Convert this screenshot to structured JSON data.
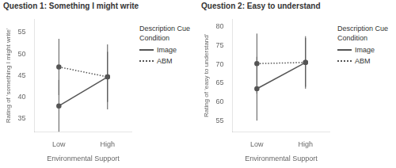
{
  "chart_data": [
    {
      "type": "line",
      "title": "Question 1: Something I might write",
      "x_label": "Environmental Support",
      "y_label": "Rating of 'something I might write'",
      "categories": [
        "Low",
        "High"
      ],
      "series": [
        {
          "name": "Image",
          "color": "#555555",
          "line_style": "solid",
          "marker": "circle",
          "values": [
            38.0,
            44.7
          ],
          "errors": [
            6.0,
            7.5
          ]
        },
        {
          "name": "ABM",
          "color": "#555555",
          "line_style": "dotted",
          "marker": "circle",
          "values": [
            47.0,
            44.7
          ],
          "errors": [
            6.5,
            5.8
          ]
        }
      ],
      "ylim": [
        32,
        58
      ],
      "yticks": [
        35,
        40,
        45,
        50,
        55
      ],
      "grid": false,
      "legend": "right",
      "legend_title": "Description Cue\nCondition"
    },
    {
      "type": "line",
      "title": "Question 2: Easy to understand",
      "x_label": "Environmental Support",
      "y_label": "Rating of 'easy to understand'",
      "categories": [
        "Low",
        "High"
      ],
      "series": [
        {
          "name": "Image",
          "color": "#555555",
          "line_style": "solid",
          "marker": "circle",
          "values": [
            63.5,
            70.5
          ],
          "errors": [
            8.5,
            7.0
          ]
        },
        {
          "name": "ABM",
          "color": "#555555",
          "line_style": "dotted",
          "marker": "circle",
          "values": [
            70.2,
            70.5
          ],
          "errors": [
            8.0,
            6.5
          ]
        }
      ],
      "ylim": [
        52,
        82
      ],
      "yticks": [
        55,
        60,
        65,
        70,
        75,
        80
      ],
      "grid": false,
      "legend": "right",
      "legend_title": "Description Cue\nCondition"
    }
  ]
}
